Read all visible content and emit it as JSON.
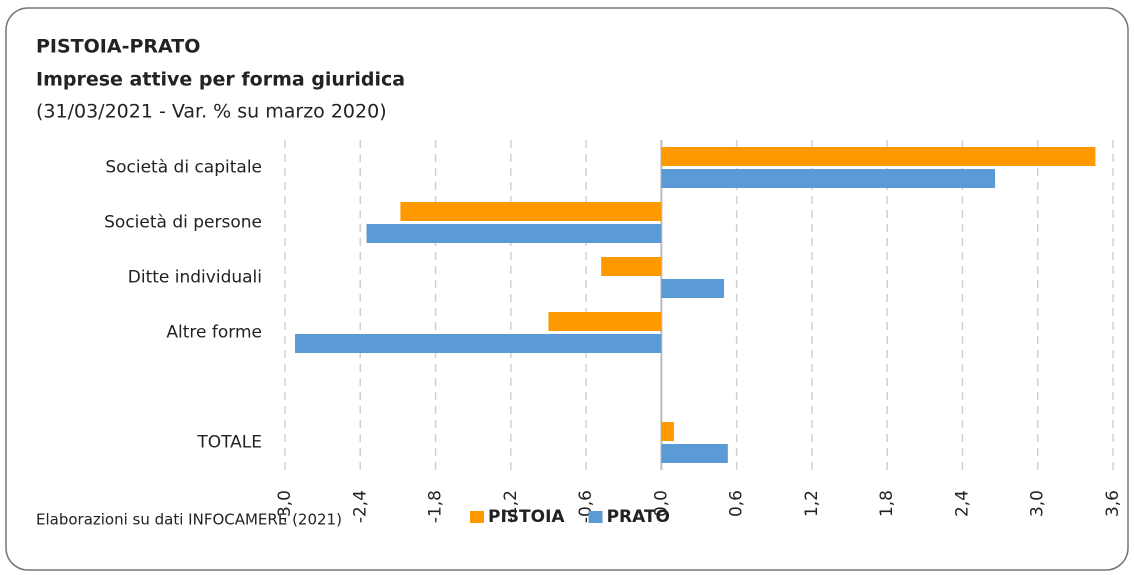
{
  "chart_data": {
    "type": "hbar",
    "title": "PISTOIA-PRATO",
    "subtitle": "Imprese attive per forma giuridica",
    "caption": "(31/03/2021 - Var. %  su marzo 2020)",
    "note": "Elaborazioni su dati INFOCAMERE (2021)",
    "categories": [
      "Società di capitale",
      "Società di persone",
      "Ditte individuali",
      "Altre forme",
      null,
      "TOTALE"
    ],
    "series": [
      {
        "name": "PISTOIA",
        "color": "#ff9900",
        "values": [
          3.46,
          -2.08,
          -0.48,
          -0.9,
          null,
          0.1
        ]
      },
      {
        "name": "PRATO",
        "color": "#5b9bd5",
        "values": [
          2.66,
          -2.35,
          0.5,
          -2.92,
          null,
          0.53
        ]
      }
    ],
    "xlim": [
      -3.0,
      3.6
    ],
    "xticks": [
      {
        "value": -3.0,
        "label": "-3,0"
      },
      {
        "value": -2.4,
        "label": "-2,4"
      },
      {
        "value": -1.8,
        "label": "-1,8"
      },
      {
        "value": -1.2,
        "label": "-1,2"
      },
      {
        "value": -0.6,
        "label": "-0,6"
      },
      {
        "value": 0.0,
        "label": "0,0"
      },
      {
        "value": 0.6,
        "label": "0,6"
      },
      {
        "value": 1.2,
        "label": "1,2"
      },
      {
        "value": 1.8,
        "label": "1,8"
      },
      {
        "value": 2.4,
        "label": "2,4"
      },
      {
        "value": 3.0,
        "label": "3,0"
      },
      {
        "value": 3.6,
        "label": "3,6"
      }
    ],
    "grid": true,
    "legend": "bottom"
  }
}
